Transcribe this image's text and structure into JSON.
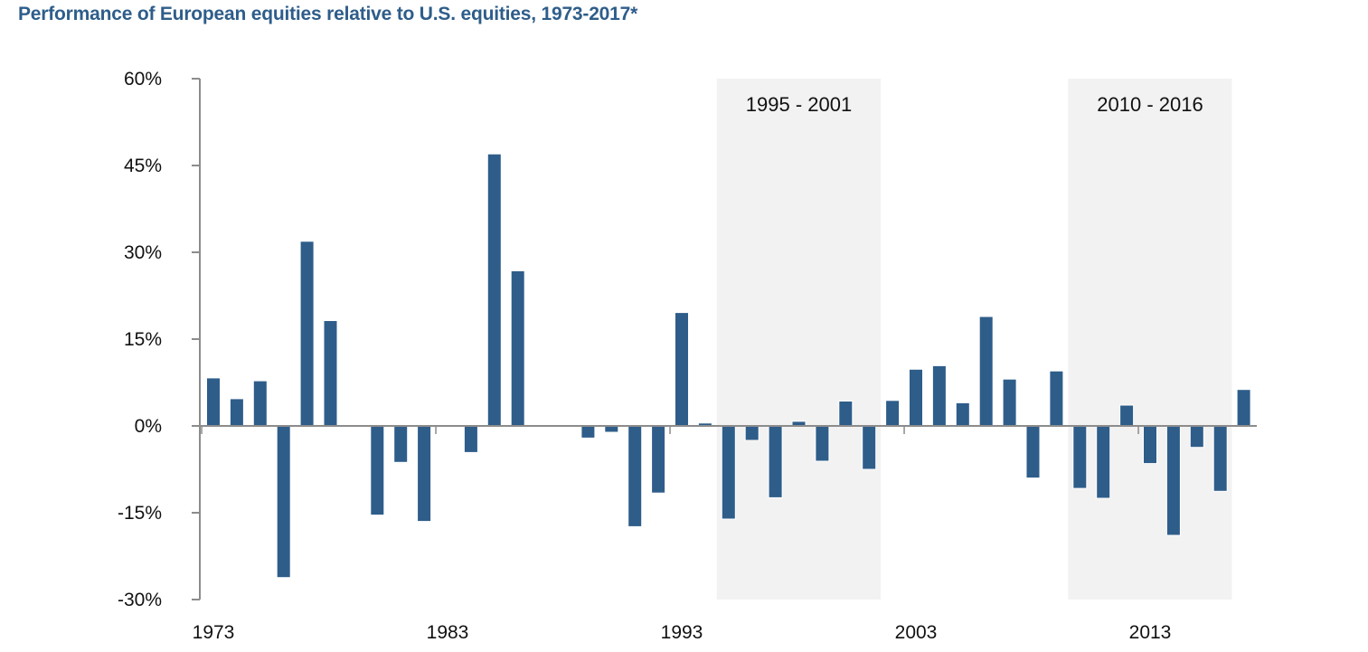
{
  "chart_data": {
    "type": "bar",
    "title": "Performance of European equities relative to U.S. equities, 1973-2017*",
    "xlabel": "",
    "ylabel": "",
    "ylim": [
      -30,
      60
    ],
    "yticks": [
      60,
      45,
      30,
      15,
      0,
      -15,
      -30
    ],
    "ytick_labels": [
      "60%",
      "45%",
      "30%",
      "15%",
      "0%",
      "-15%",
      "-30%"
    ],
    "xtick_labels": [
      "1973",
      "1983",
      "1993",
      "2003",
      "2013"
    ],
    "xtick_years": [
      1973,
      1983,
      1993,
      2003,
      2013
    ],
    "grid": false,
    "bar_color": "#2e5d8a",
    "shade_color": "#f2f2f2",
    "categories": [
      1973,
      1974,
      1975,
      1976,
      1977,
      1978,
      1979,
      1980,
      1981,
      1982,
      1983,
      1984,
      1985,
      1986,
      1987,
      1988,
      1989,
      1990,
      1991,
      1992,
      1993,
      1994,
      1995,
      1996,
      1997,
      1998,
      1999,
      2000,
      2001,
      2002,
      2003,
      2004,
      2005,
      2006,
      2007,
      2008,
      2009,
      2010,
      2011,
      2012,
      2013,
      2014,
      2015,
      2016,
      2017
    ],
    "values": [
      8.3,
      4.7,
      7.8,
      -26.2,
      31.9,
      18.2,
      0,
      -15.4,
      -6.3,
      -16.5,
      0,
      -4.6,
      47.0,
      26.8,
      0,
      0,
      -2.1,
      -1.1,
      -17.4,
      -11.6,
      19.6,
      0.5,
      -16.1,
      -2.5,
      -12.4,
      0.8,
      -6.1,
      4.3,
      -7.5,
      4.4,
      9.8,
      10.4,
      4.0,
      18.9,
      8.1,
      -9.0,
      9.5,
      -10.8,
      -12.5,
      3.6,
      -6.5,
      -18.9,
      -3.7,
      -11.3,
      6.3
    ],
    "shaded_periods": [
      {
        "label": "1995 - 2001",
        "start": 1995,
        "end": 2001
      },
      {
        "label": "2010 - 2016",
        "start": 2010,
        "end": 2016
      }
    ]
  }
}
